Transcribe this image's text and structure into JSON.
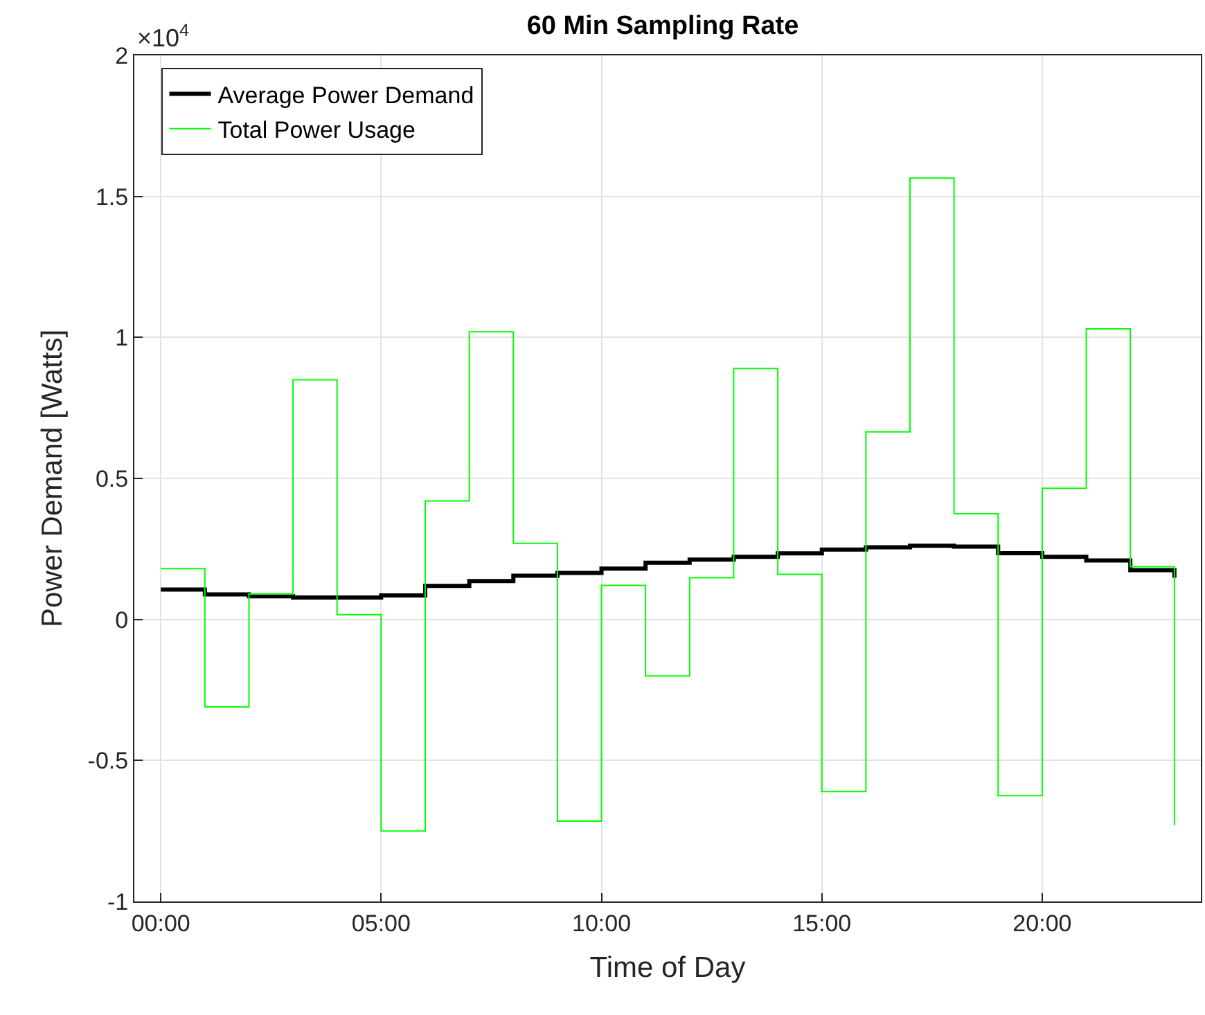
{
  "chart_data": {
    "type": "step",
    "title": "60 Min Sampling Rate",
    "xlabel": "Time of Day",
    "ylabel": "Power Demand [Watts]",
    "annotations": [
      "×10$^{4}$"
    ],
    "x": [
      0,
      1,
      2,
      3,
      4,
      5,
      6,
      7,
      8,
      9,
      10,
      11,
      12,
      13,
      14,
      15,
      16,
      17,
      18,
      19,
      20,
      21,
      22,
      23
    ],
    "series": [
      {
        "name": "Average Power Demand",
        "color": "#000000",
        "values": [
          0.106,
          0.089,
          0.082,
          0.078,
          0.078,
          0.085,
          0.119,
          0.136,
          0.155,
          0.165,
          0.18,
          0.201,
          0.212,
          0.222,
          0.234,
          0.248,
          0.256,
          0.261,
          0.258,
          0.235,
          0.222,
          0.209,
          0.175,
          0.148
        ]
      },
      {
        "name": "Total Power Usage",
        "color": "#00ff00",
        "values": [
          0.18,
          -0.31,
          0.09,
          0.85,
          0.017,
          -0.75,
          0.42,
          1.02,
          0.27,
          -0.715,
          0.121,
          -0.2,
          0.148,
          0.89,
          0.16,
          -0.61,
          0.665,
          1.565,
          0.375,
          -0.625,
          0.465,
          1.03,
          0.187,
          -0.73
        ]
      }
    ],
    "xlim": [
      -0.6,
      23.6
    ],
    "xticks": [
      {
        "value": 0,
        "label": "00:00"
      },
      {
        "value": 5,
        "label": "05:00"
      },
      {
        "value": 10,
        "label": "10:00"
      },
      {
        "value": 15,
        "label": "15:00"
      },
      {
        "value": 20,
        "label": "20:00"
      }
    ],
    "ylim": [
      -1,
      2
    ],
    "yticks": [
      -1,
      -0.5,
      0,
      0.5,
      1,
      1.5,
      2
    ],
    "grid": true,
    "legend": "top left"
  }
}
